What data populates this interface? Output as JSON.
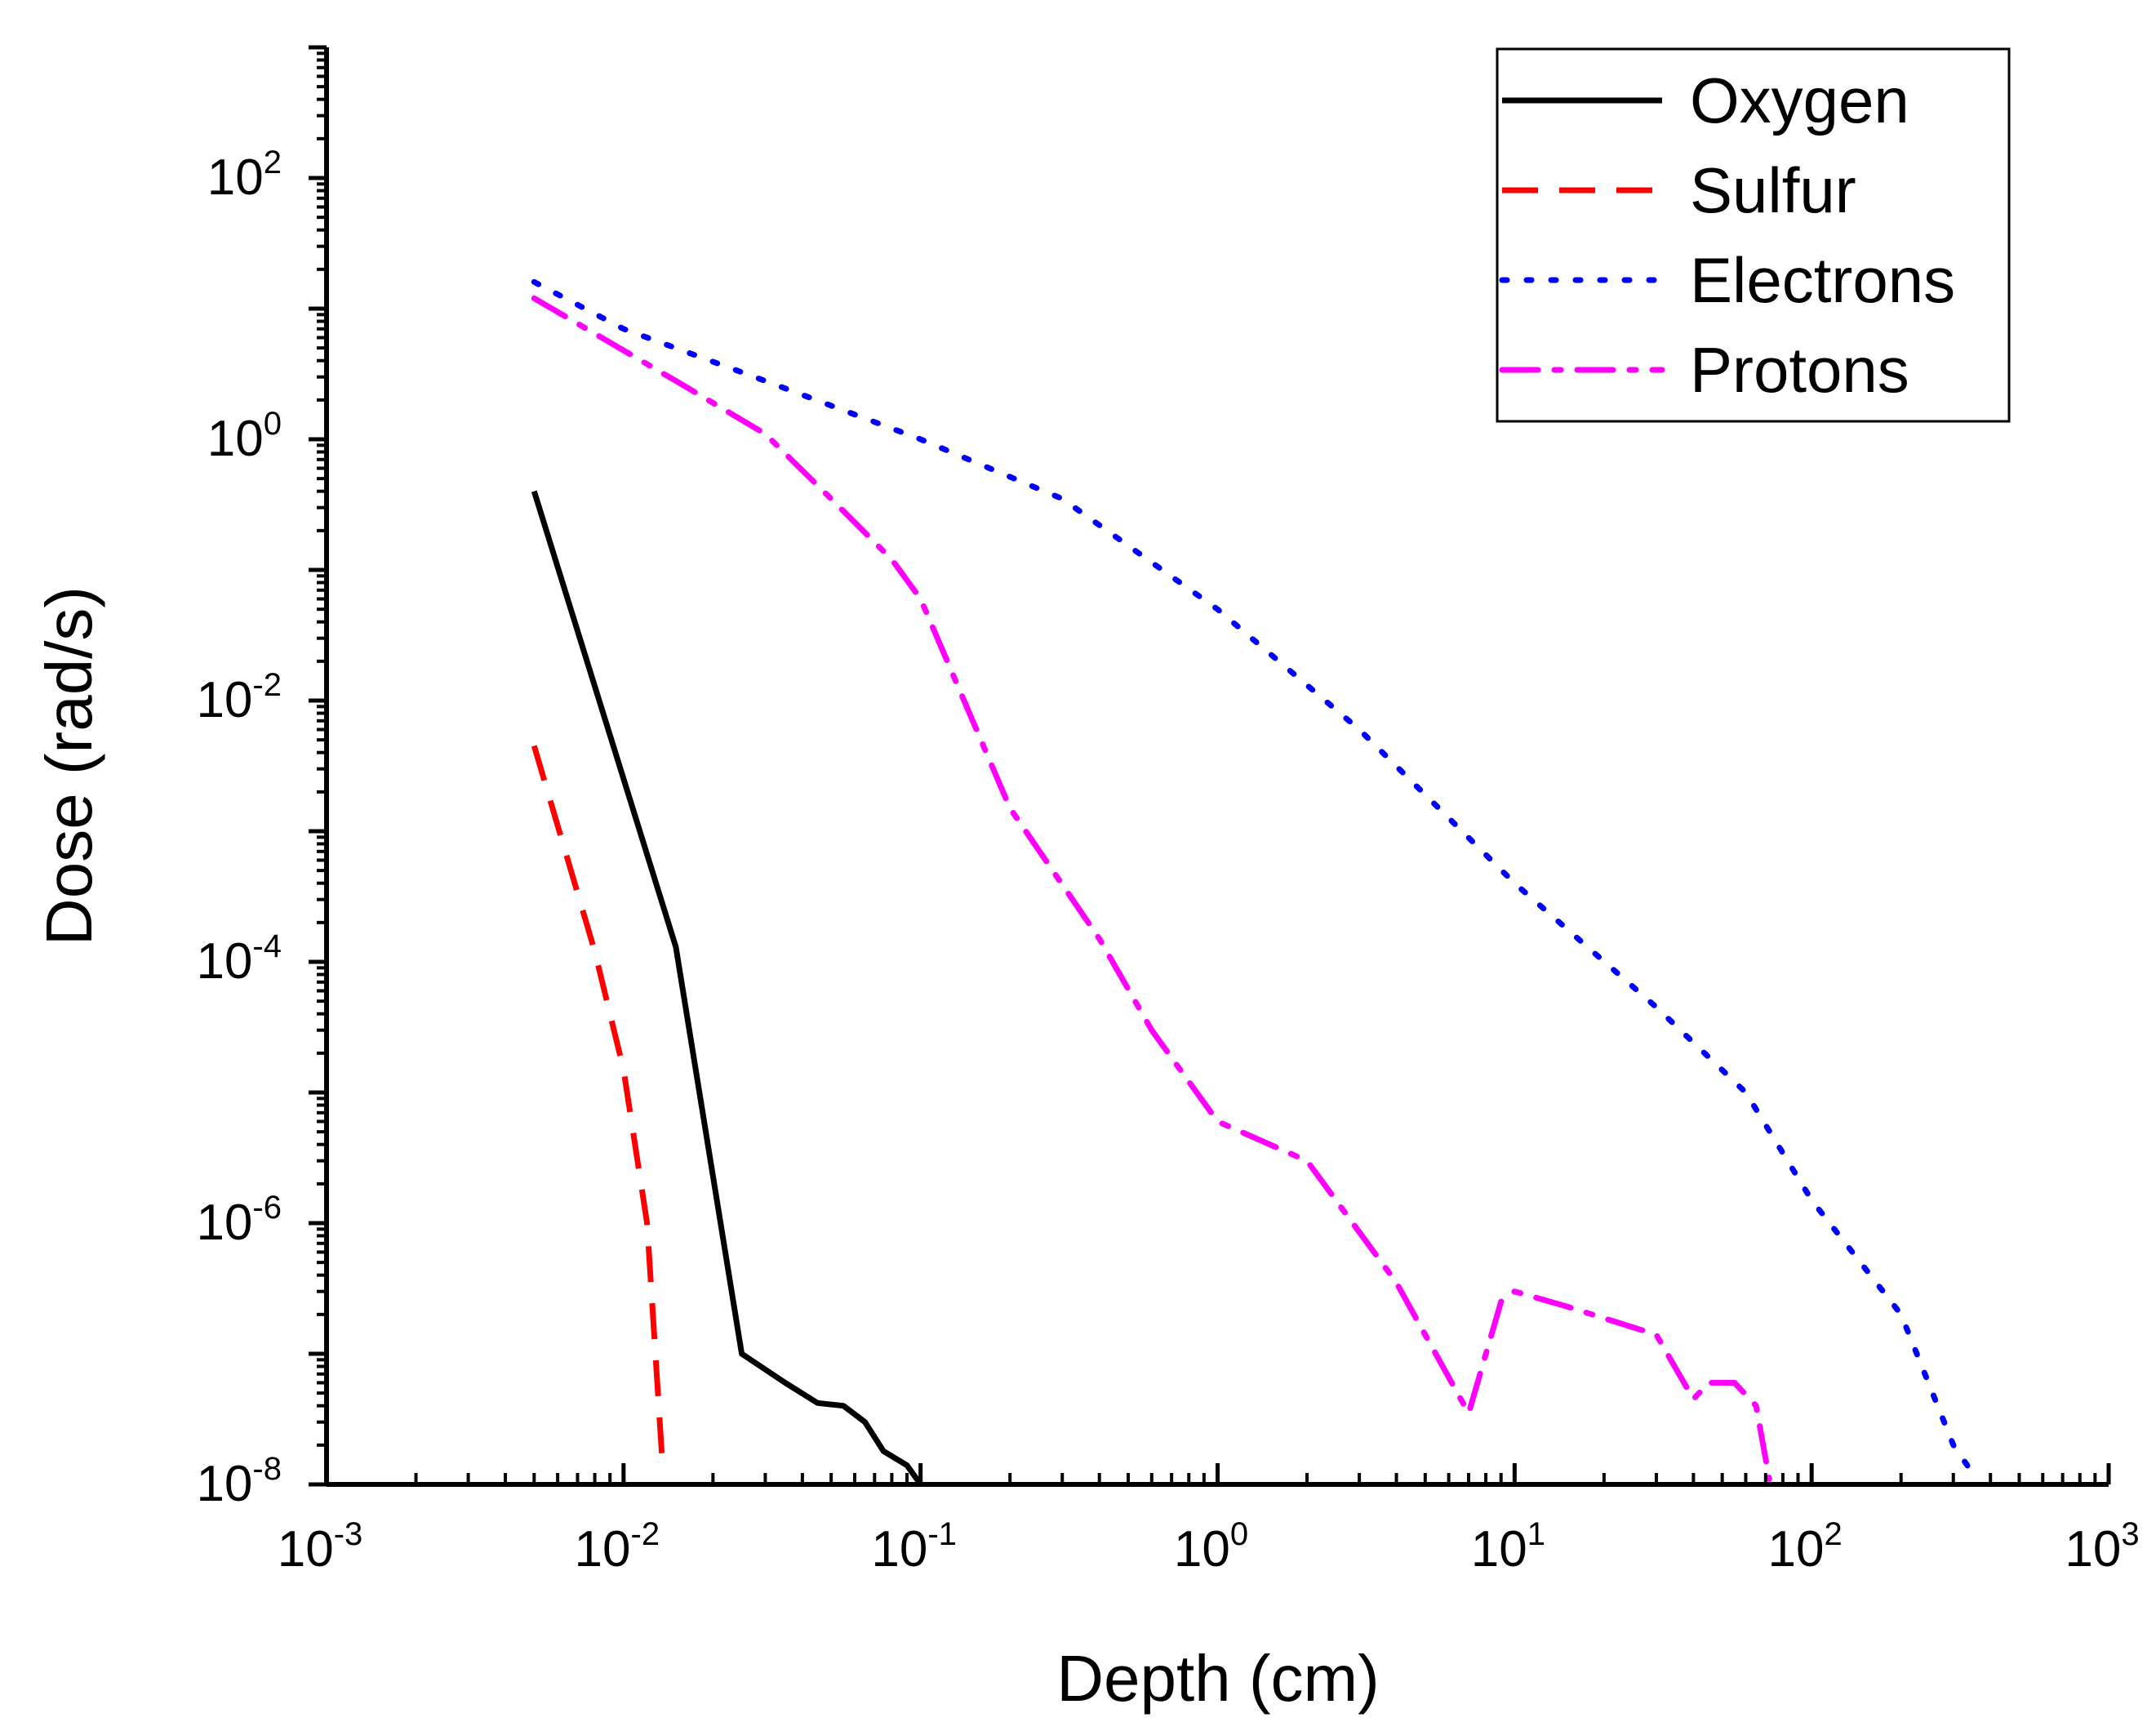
{
  "chart_data": {
    "type": "line",
    "xlabel": "Depth (cm)",
    "ylabel": "Dose (rad/s)",
    "x_scale": "log",
    "y_scale": "log",
    "xlim": [
      0.001,
      1000
    ],
    "ylim": [
      1e-08,
      1000
    ],
    "x_ticks": [
      {
        "base": "10",
        "exp": "-3"
      },
      {
        "base": "10",
        "exp": "-2"
      },
      {
        "base": "10",
        "exp": "-1"
      },
      {
        "base": "10",
        "exp": "0"
      },
      {
        "base": "10",
        "exp": "1"
      },
      {
        "base": "10",
        "exp": "2"
      },
      {
        "base": "10",
        "exp": "3"
      }
    ],
    "y_ticks": [
      {
        "base": "10",
        "exp": "-8"
      },
      {
        "base": "10",
        "exp": "-6"
      },
      {
        "base": "10",
        "exp": "-4"
      },
      {
        "base": "10",
        "exp": "-2"
      },
      {
        "base": "10",
        "exp": "0"
      },
      {
        "base": "10",
        "exp": "2"
      }
    ],
    "grid": false,
    "legend_position": "top-right",
    "series": [
      {
        "name": "Oxygen",
        "color": "#000000",
        "style": "solid",
        "points": [
          [
            0.005,
            0.4
          ],
          [
            0.015,
            0.00013
          ],
          [
            0.025,
            1e-07
          ],
          [
            0.035,
            6e-08
          ],
          [
            0.045,
            4.2e-08
          ],
          [
            0.055,
            4e-08
          ],
          [
            0.065,
            3e-08
          ],
          [
            0.075,
            1.8e-08
          ],
          [
            0.09,
            1.4e-08
          ],
          [
            0.1,
            1e-08
          ]
        ]
      },
      {
        "name": "Sulfur",
        "color": "#ff0000",
        "style": "dashed",
        "points": [
          [
            0.005,
            0.0045
          ],
          [
            0.008,
            0.00012
          ],
          [
            0.01,
            1.5e-05
          ],
          [
            0.012,
            1e-06
          ],
          [
            0.0135,
            1.5e-08
          ]
        ]
      },
      {
        "name": "Electrons",
        "color": "#0000ff",
        "style": "dotted",
        "points": [
          [
            0.005,
            16
          ],
          [
            0.01,
            7
          ],
          [
            0.03,
            2.8
          ],
          [
            0.1,
            1.0
          ],
          [
            0.3,
            0.35
          ],
          [
            1,
            0.05
          ],
          [
            3,
            0.006
          ],
          [
            10,
            0.0004
          ],
          [
            30,
            4.5e-05
          ],
          [
            60,
            1e-05
          ],
          [
            100,
            1.5e-06
          ],
          [
            200,
            2e-07
          ],
          [
            300,
            2e-08
          ],
          [
            350,
            1.2e-08
          ]
        ]
      },
      {
        "name": "Protons",
        "color": "#ff00ff",
        "style": "dashdot",
        "points": [
          [
            0.005,
            12
          ],
          [
            0.015,
            2.8
          ],
          [
            0.03,
            1.1
          ],
          [
            0.05,
            0.35
          ],
          [
            0.08,
            0.12
          ],
          [
            0.1,
            0.06
          ],
          [
            0.2,
            0.0015
          ],
          [
            0.4,
            0.00015
          ],
          [
            0.6,
            3e-05
          ],
          [
            1.0,
            6e-06
          ],
          [
            2.0,
            3e-06
          ],
          [
            4.0,
            3.5e-07
          ],
          [
            7.0,
            3.5e-08
          ],
          [
            9.0,
            2.5e-07
          ],
          [
            10,
            3e-07
          ],
          [
            15,
            2.3e-07
          ],
          [
            30,
            1.4e-07
          ],
          [
            40,
            4.5e-08
          ],
          [
            45,
            6e-08
          ],
          [
            55,
            6e-08
          ],
          [
            65,
            4e-08
          ],
          [
            72,
            1.1e-08
          ]
        ]
      }
    ]
  }
}
